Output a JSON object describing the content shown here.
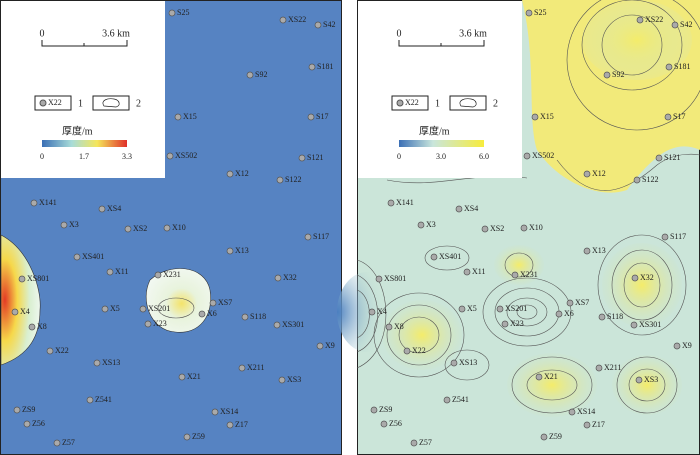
{
  "wells": [
    "S25",
    "XS22",
    "S42",
    "S181",
    "S92",
    "X15",
    "S17",
    "XS502",
    "S121",
    "X12",
    "S122",
    "X141",
    "XS4",
    "X3",
    "XS2",
    "X10",
    "S117",
    "X13",
    "XS401",
    "X11",
    "X231",
    "X32",
    "XS801",
    "X4",
    "X5",
    "XS201",
    "X23",
    "X6",
    "XS7",
    "S118",
    "XS301",
    "X8",
    "X9",
    "X22",
    "XS13",
    "X211",
    "X21",
    "XS3",
    "Z541",
    "ZS9",
    "XS14",
    "Z56",
    "Z17",
    "Z59",
    "Z57"
  ],
  "panels": [
    {
      "scale_bar": {
        "start": "0",
        "end": "3.6 km"
      },
      "legend": {
        "well_symbol": "X22",
        "symbol_1": "1",
        "symbol_2": "2",
        "colorbar_title": "厚度/m",
        "colorbar_ticks": [
          "0",
          "1.7",
          "3.3"
        ]
      }
    },
    {
      "scale_bar": {
        "start": "0",
        "end": "3.6 km"
      },
      "legend": {
        "well_symbol": "X22",
        "symbol_1": "1",
        "symbol_2": "2",
        "colorbar_title": "厚度/m",
        "colorbar_ticks": [
          "0",
          "3.0",
          "6.0"
        ]
      }
    }
  ]
}
